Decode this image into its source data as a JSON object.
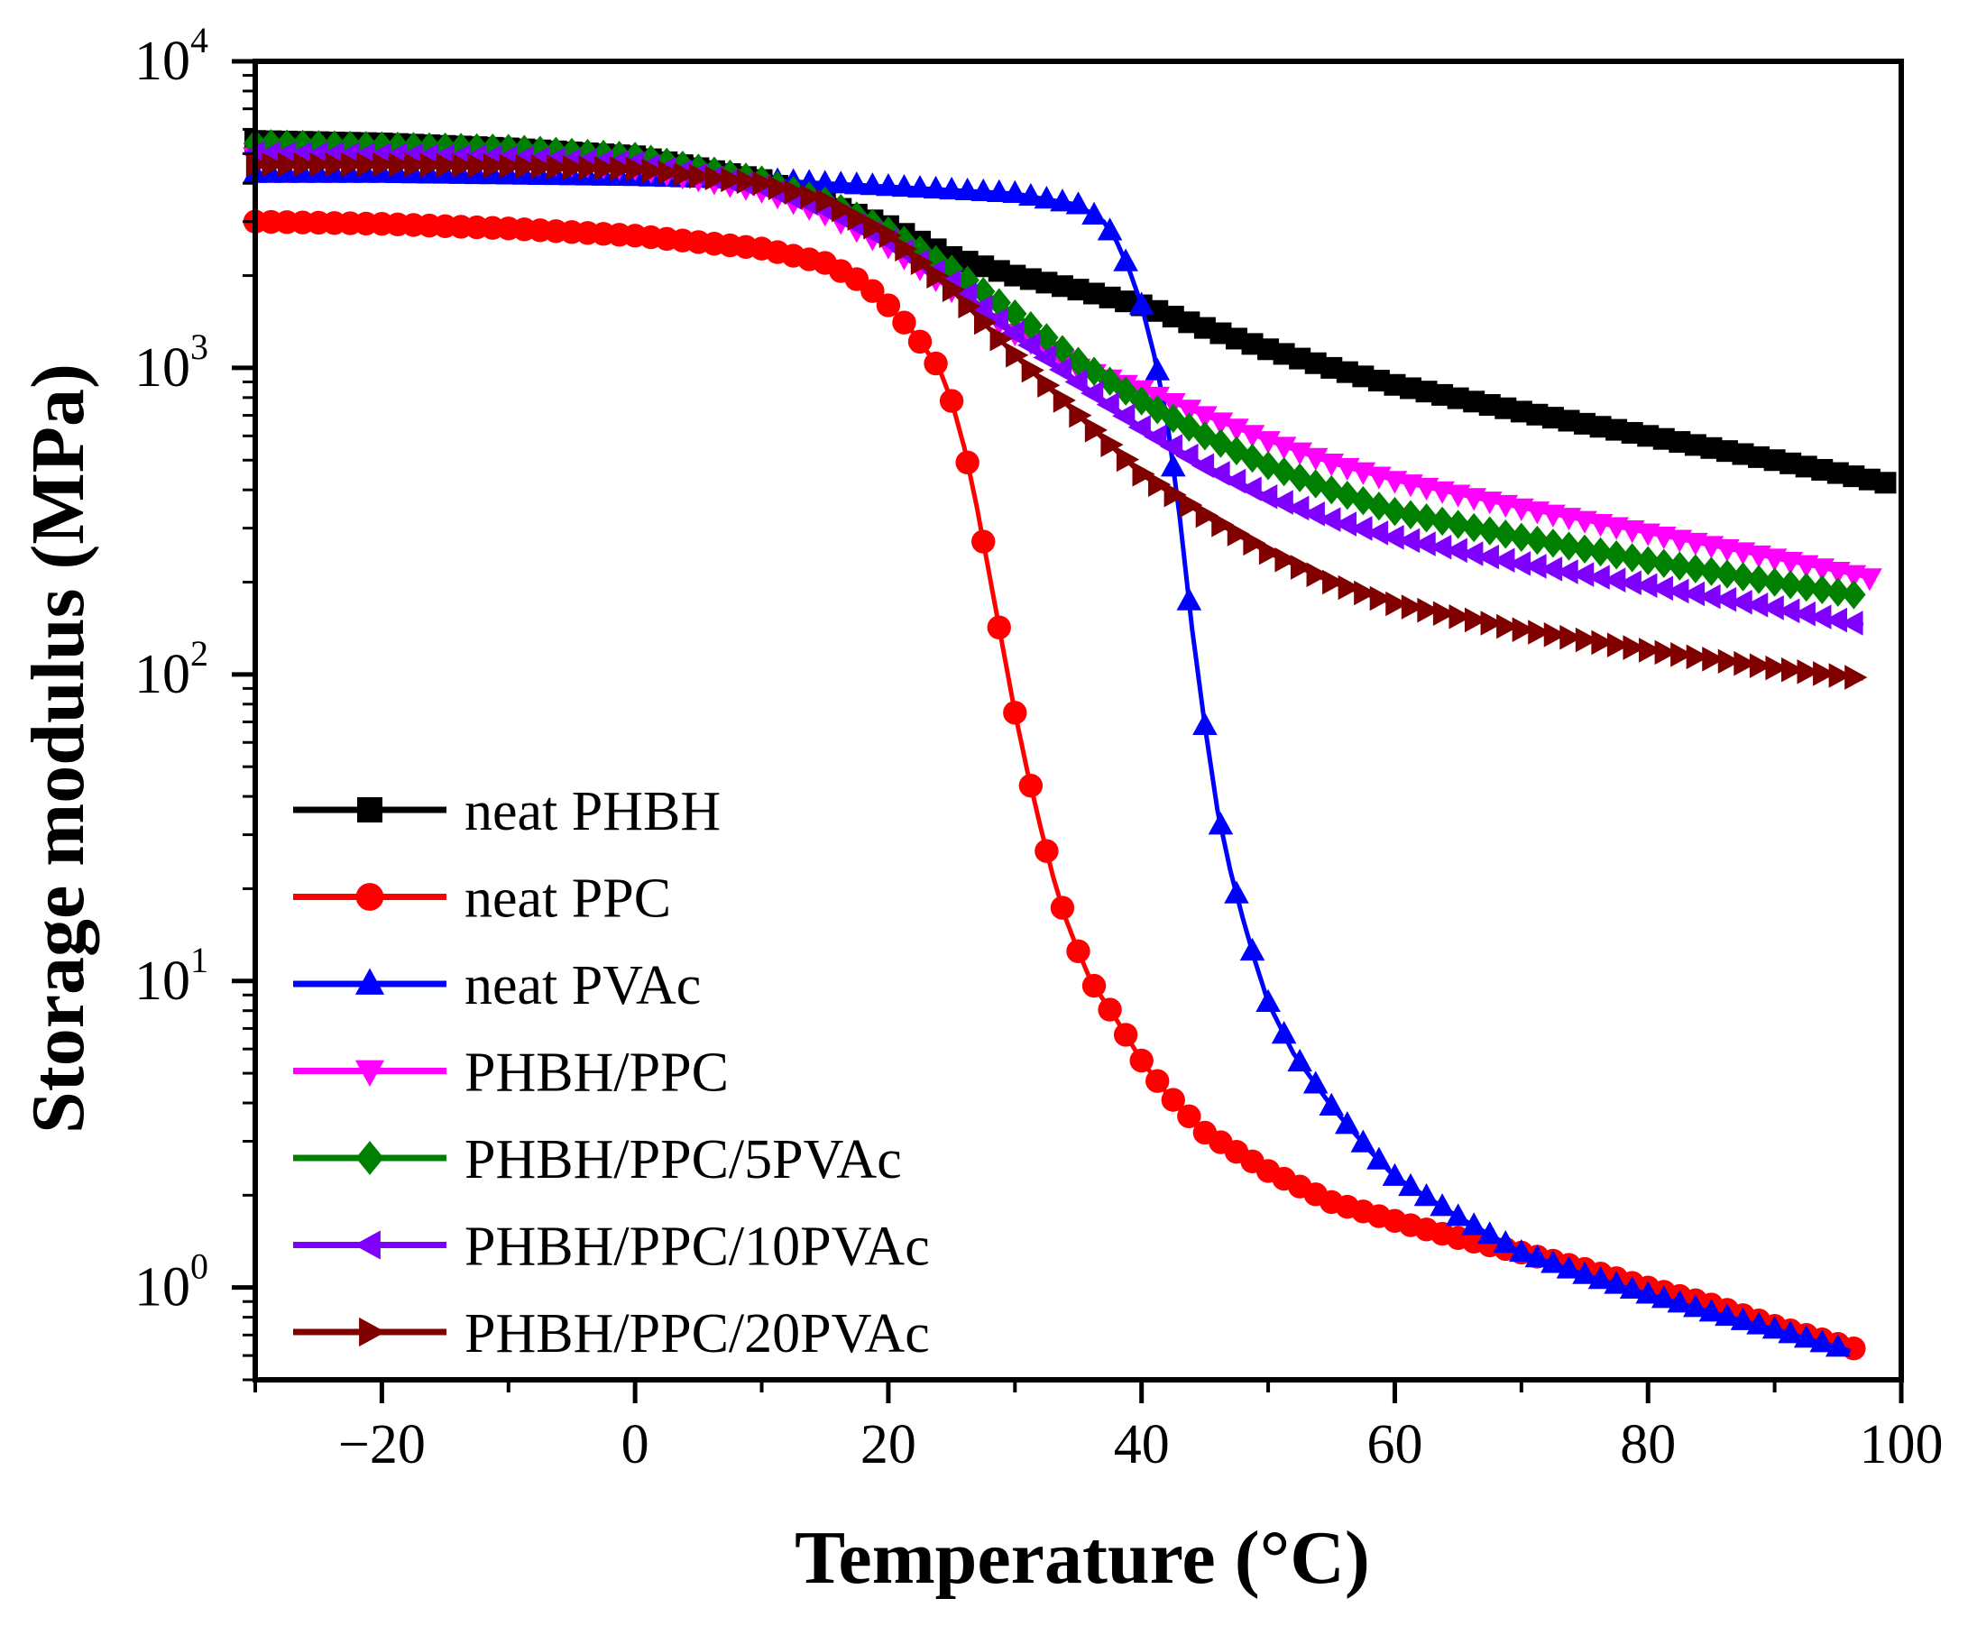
{
  "chart_data": {
    "type": "line",
    "title": "",
    "xlabel": "Temperature (°C)",
    "ylabel": "Storage modulus (MPa)",
    "xlim": [
      -30,
      100
    ],
    "ylim": [
      0.5,
      10000
    ],
    "yscale": "log",
    "x_ticks": [
      -20,
      0,
      20,
      40,
      60,
      80,
      100
    ],
    "x_tick_labels": [
      "−20",
      "0",
      "20",
      "40",
      "60",
      "80",
      "100"
    ],
    "y_ticks": [
      {
        "value": 1,
        "base": "10",
        "exp": "0"
      },
      {
        "value": 10,
        "base": "10",
        "exp": "1"
      },
      {
        "value": 100,
        "base": "10",
        "exp": "2"
      },
      {
        "value": 1000,
        "base": "10",
        "exp": "3"
      },
      {
        "value": 10000,
        "base": "10",
        "exp": "4"
      }
    ],
    "grid": false,
    "legend_position": "bottom-left",
    "series": [
      {
        "name": "neat PHBH",
        "color": "#000000",
        "marker": "square",
        "x": [
          -30,
          -20,
          -10,
          0,
          10,
          20,
          25,
          30,
          35,
          40,
          45,
          50,
          55,
          60,
          70,
          80,
          90,
          99
        ],
        "y": [
          5500,
          5400,
          5200,
          4900,
          4100,
          2900,
          2300,
          2000,
          1800,
          1600,
          1350,
          1150,
          1000,
          880,
          720,
          600,
          500,
          420
        ]
      },
      {
        "name": "neat PPC",
        "color": "#ff0000",
        "marker": "circle",
        "x": [
          -30,
          -20,
          -10,
          0,
          10,
          15,
          18,
          20,
          22,
          24,
          25,
          26,
          27,
          28,
          29,
          30,
          31,
          32,
          33,
          34,
          35,
          36,
          38,
          40,
          42,
          45,
          50,
          55,
          60,
          65,
          70,
          75,
          80,
          85,
          90,
          97
        ],
        "y": [
          3000,
          2950,
          2850,
          2700,
          2450,
          2200,
          1900,
          1600,
          1300,
          1000,
          780,
          550,
          350,
          210,
          125,
          75,
          48,
          32,
          22,
          16,
          12.5,
          10,
          7.5,
          5.5,
          4.3,
          3.2,
          2.4,
          1.9,
          1.65,
          1.45,
          1.3,
          1.15,
          1.0,
          0.88,
          0.75,
          0.62
        ]
      },
      {
        "name": "neat PVAc",
        "color": "#0000ff",
        "marker": "triangle-up",
        "x": [
          -30,
          -20,
          -10,
          0,
          10,
          20,
          30,
          35,
          37,
          38,
          39,
          40,
          41,
          42,
          43,
          44,
          45,
          46,
          47,
          48,
          49,
          50,
          52,
          55,
          58,
          60,
          65,
          70,
          75,
          80,
          85,
          90,
          96
        ],
        "y": [
          4300,
          4300,
          4250,
          4200,
          4100,
          3900,
          3700,
          3400,
          3000,
          2600,
          2100,
          1600,
          1100,
          680,
          330,
          140,
          68,
          36,
          23,
          16,
          11.5,
          8.5,
          5.8,
          3.9,
          2.8,
          2.3,
          1.7,
          1.3,
          1.1,
          0.95,
          0.83,
          0.73,
          0.62
        ]
      },
      {
        "name": "PHBH/PPC",
        "color": "#ff00ff",
        "marker": "triangle-down",
        "x": [
          -30,
          -20,
          -10,
          0,
          10,
          15,
          20,
          25,
          30,
          35,
          40,
          45,
          50,
          55,
          60,
          70,
          80,
          90,
          98
        ],
        "y": [
          4900,
          4850,
          4750,
          4500,
          3800,
          3200,
          2500,
          1800,
          1300,
          1000,
          850,
          700,
          580,
          490,
          430,
          350,
          290,
          240,
          205
        ]
      },
      {
        "name": "PHBH/PPC/5PVAc",
        "color": "#008000",
        "marker": "diamond",
        "x": [
          -30,
          -20,
          -10,
          0,
          10,
          15,
          20,
          25,
          30,
          35,
          40,
          45,
          50,
          55,
          60,
          70,
          80,
          90,
          97
        ],
        "y": [
          5400,
          5300,
          5200,
          4900,
          4100,
          3500,
          2800,
          2100,
          1500,
          1050,
          780,
          600,
          480,
          400,
          340,
          280,
          235,
          200,
          180
        ]
      },
      {
        "name": "PHBH/PPC/10PVAc",
        "color": "#8000ff",
        "marker": "triangle-left",
        "x": [
          -30,
          -20,
          -10,
          0,
          10,
          15,
          20,
          25,
          30,
          35,
          40,
          45,
          50,
          55,
          60,
          70,
          80,
          90,
          97
        ],
        "y": [
          5000,
          4950,
          4850,
          4650,
          3900,
          3300,
          2600,
          1900,
          1300,
          900,
          640,
          480,
          380,
          320,
          280,
          230,
          195,
          165,
          145
        ]
      },
      {
        "name": "PHBH/PPC/20PVAc",
        "color": "#800000",
        "marker": "triangle-right",
        "x": [
          -30,
          -20,
          -10,
          0,
          10,
          15,
          20,
          25,
          30,
          35,
          40,
          45,
          50,
          55,
          60,
          70,
          80,
          90,
          97
        ],
        "y": [
          4600,
          4600,
          4550,
          4450,
          4000,
          3500,
          2700,
          1800,
          1100,
          700,
          450,
          330,
          250,
          200,
          170,
          140,
          120,
          105,
          97
        ]
      }
    ]
  },
  "styles": {
    "axis_color": "#000000",
    "background": "#ffffff"
  }
}
